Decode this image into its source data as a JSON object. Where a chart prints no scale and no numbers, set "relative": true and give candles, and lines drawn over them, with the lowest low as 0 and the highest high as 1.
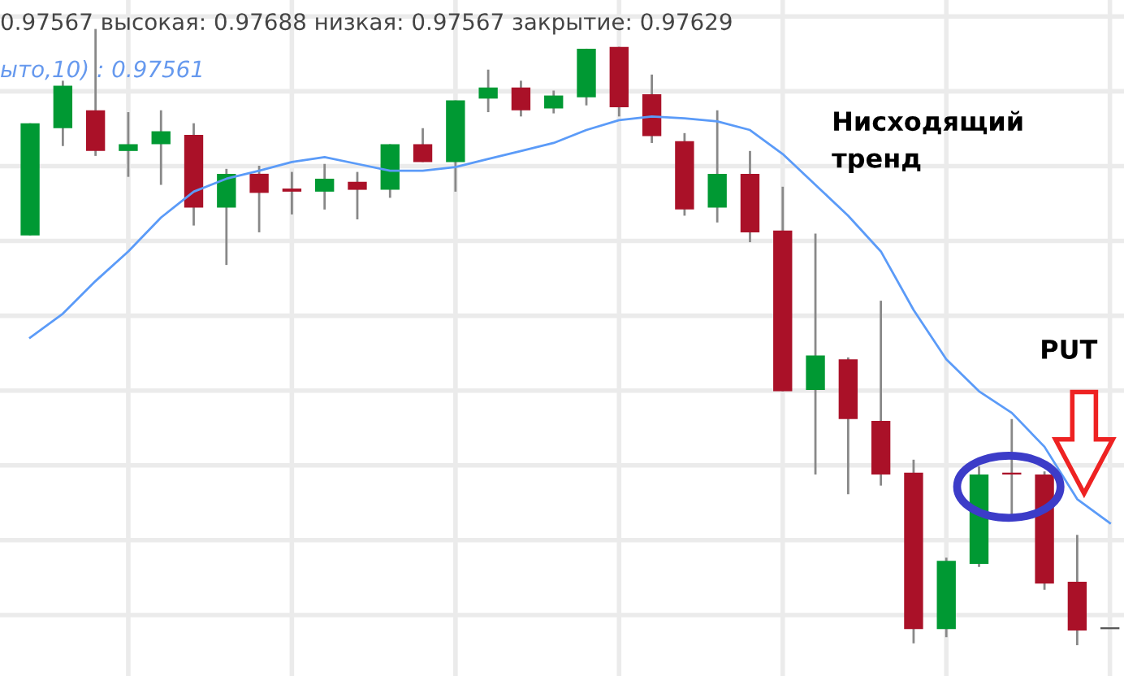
{
  "chart_data": {
    "type": "candlestick",
    "relative": true,
    "grid": true,
    "categories": [
      null,
      null,
      null,
      null,
      null,
      null,
      null,
      null,
      null,
      null,
      null,
      null,
      null,
      null,
      null,
      null,
      null,
      null,
      null,
      null,
      null,
      null,
      null,
      null,
      null,
      null,
      null,
      null,
      null,
      null,
      null,
      null,
      null,
      null
    ],
    "ohlc": [
      [
        0.665,
        0.847,
        0.665,
        0.847
      ],
      [
        0.839,
        0.916,
        0.81,
        0.908
      ],
      [
        0.868,
        1.0,
        0.794,
        0.802
      ],
      [
        0.802,
        0.865,
        0.76,
        0.813
      ],
      [
        0.813,
        0.868,
        0.747,
        0.834
      ],
      [
        0.828,
        0.847,
        0.681,
        0.71
      ],
      [
        0.71,
        0.773,
        0.617,
        0.765
      ],
      [
        0.765,
        0.778,
        0.67,
        0.734
      ],
      [
        0.741,
        0.768,
        0.699,
        0.736
      ],
      [
        0.736,
        0.781,
        0.707,
        0.757
      ],
      [
        0.752,
        0.768,
        0.691,
        0.739
      ],
      [
        0.739,
        0.813,
        0.726,
        0.813
      ],
      [
        0.813,
        0.839,
        0.784,
        0.784
      ],
      [
        0.784,
        0.884,
        0.736,
        0.884
      ],
      [
        0.887,
        0.934,
        0.865,
        0.905
      ],
      [
        0.905,
        0.916,
        0.858,
        0.868
      ],
      [
        0.871,
        0.9,
        0.863,
        0.892
      ],
      [
        0.889,
        0.968,
        0.876,
        0.968
      ],
      [
        0.971,
        0.971,
        0.858,
        0.873
      ],
      [
        0.894,
        0.926,
        0.815,
        0.826
      ],
      [
        0.818,
        0.831,
        0.697,
        0.707
      ],
      [
        0.71,
        0.868,
        0.686,
        0.765
      ],
      [
        0.765,
        0.802,
        0.654,
        0.67
      ],
      [
        0.673,
        0.744,
        0.412,
        0.412
      ],
      [
        0.414,
        0.668,
        0.277,
        0.47
      ],
      [
        0.464,
        0.467,
        0.245,
        0.367
      ],
      [
        0.364,
        0.559,
        0.259,
        0.277
      ],
      [
        0.28,
        0.301,
        0.003,
        0.026
      ],
      [
        0.026,
        0.142,
        0.013,
        0.137
      ],
      [
        0.132,
        0.29,
        0.127,
        0.277
      ],
      [
        0.28,
        0.367,
        0.211,
        0.277
      ],
      [
        0.277,
        0.282,
        0.09,
        0.1
      ],
      [
        0.103,
        0.179,
        0.0,
        0.024
      ],
      [
        0.026,
        0.026,
        0.026,
        0.026
      ]
    ],
    "colors": [
      "#009933",
      "#009933",
      "#aa1128",
      "#009933",
      "#009933",
      "#aa1128",
      "#009933",
      "#aa1128",
      "#aa1128",
      "#009933",
      "#aa1128",
      "#009933",
      "#aa1128",
      "#009933",
      "#009933",
      "#aa1128",
      "#009933",
      "#009933",
      "#aa1128",
      "#aa1128",
      "#aa1128",
      "#009933",
      "#aa1128",
      "#aa1128",
      "#009933",
      "#aa1128",
      "#aa1128",
      "#aa1128",
      "#009933",
      "#009933",
      "#aa1128",
      "#aa1128",
      "#aa1128",
      "#555555"
    ],
    "series": [
      {
        "type": "line",
        "color": "#5b9bf8",
        "values": [
          0.499,
          0.538,
          0.591,
          0.639,
          0.694,
          0.736,
          0.757,
          0.77,
          0.784,
          0.792,
          0.781,
          0.77,
          0.77,
          0.776,
          0.789,
          0.802,
          0.815,
          0.836,
          0.852,
          0.858,
          0.855,
          0.85,
          0.836,
          0.797,
          0.747,
          0.697,
          0.639,
          0.544,
          0.464,
          0.412,
          0.377,
          0.322,
          0.237,
          0.198
        ]
      }
    ],
    "annotations": [
      "0.97567 высокая: 0.97688 низкая: 0.97567 закрытие: 0.97629",
      "ыто,10) : 0.97561",
      "Нисходящий\nтренд",
      "PUT"
    ]
  }
}
